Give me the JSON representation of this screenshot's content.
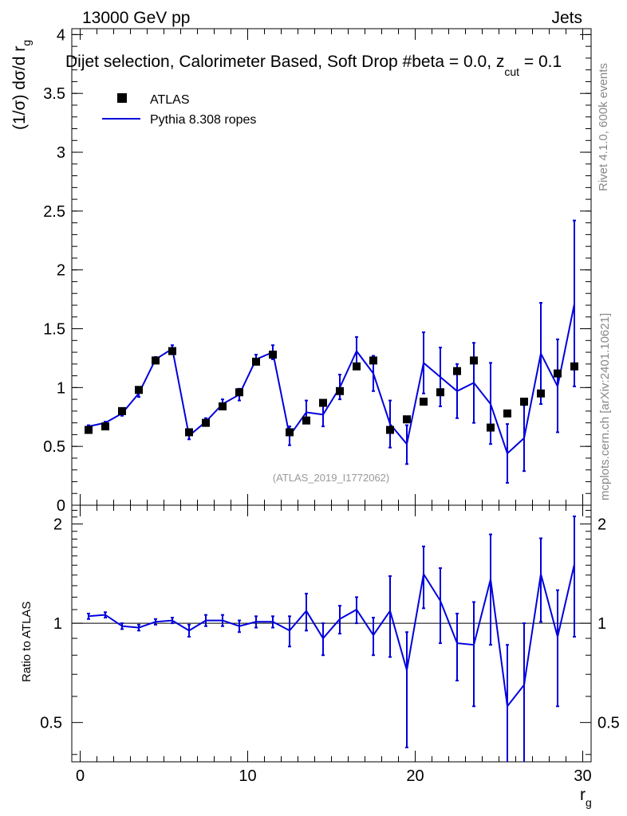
{
  "header": {
    "left": "13000 GeV pp",
    "right": "Jets"
  },
  "plot_title": "Dijet selection, Calorimeter Based, Soft Drop #beta = 0.0, z",
  "plot_title_sub": "cut",
  "plot_title_tail": " = 0.1",
  "side_labels": {
    "rivet": "Rivet 4.1.0,  600k events",
    "mcplots": "mcplots.cern.ch [arXiv:2401.10621]"
  },
  "analysis_id": "(ATLAS_2019_I1772062)",
  "chart_data": [
    {
      "type": "scatter+line",
      "panel": "main",
      "ylabel": "(1/σ) dσ/d r",
      "ylabel_sub": "g",
      "ylim": [
        0,
        4.05
      ],
      "yticks": [
        {
          "v": 0,
          "label": "0"
        },
        {
          "v": 0.5,
          "label": "0.5"
        },
        {
          "v": 1,
          "label": "1"
        },
        {
          "v": 1.5,
          "label": "1.5"
        },
        {
          "v": 2,
          "label": "2"
        },
        {
          "v": 2.5,
          "label": "2.5"
        },
        {
          "v": 3,
          "label": "3"
        },
        {
          "v": 3.5,
          "label": "3.5"
        },
        {
          "v": 4,
          "label": "4"
        }
      ],
      "xlim": [
        -0.5,
        30.5
      ],
      "legend": [
        {
          "label": "ATLAS",
          "kind": "marker"
        },
        {
          "label": "Pythia 8.308 ropes",
          "kind": "line",
          "color": "#0000dd"
        }
      ],
      "x": [
        0.5,
        1.5,
        2.5,
        3.5,
        4.5,
        5.5,
        6.5,
        7.5,
        8.5,
        9.5,
        10.5,
        11.5,
        12.5,
        13.5,
        14.5,
        15.5,
        16.5,
        17.5,
        18.5,
        19.5,
        20.5,
        21.5,
        22.5,
        23.5,
        24.5,
        25.5,
        26.5,
        27.5,
        28.5,
        29.5
      ],
      "series": [
        {
          "name": "ATLAS",
          "values": [
            0.64,
            0.67,
            0.8,
            0.98,
            1.23,
            1.31,
            0.62,
            0.7,
            0.84,
            0.96,
            1.22,
            1.28,
            0.62,
            0.72,
            0.87,
            0.97,
            1.18,
            1.23,
            0.64,
            0.73,
            0.88,
            0.96,
            1.14,
            1.23,
            0.66,
            0.78,
            0.88,
            0.95,
            1.12,
            1.18
          ],
          "color": "#000000"
        },
        {
          "name": "Pythia 8.308 ropes",
          "values": [
            0.67,
            0.7,
            0.78,
            0.95,
            1.24,
            1.33,
            0.59,
            0.71,
            0.86,
            0.94,
            1.24,
            1.3,
            0.59,
            0.79,
            0.77,
            1.0,
            1.31,
            1.12,
            0.69,
            0.52,
            1.21,
            1.09,
            0.97,
            1.04,
            0.86,
            0.44,
            0.57,
            1.29,
            1.01,
            1.71
          ],
          "err_low": [
            0.01,
            0.01,
            0.02,
            0.03,
            0.02,
            0.03,
            0.03,
            0.03,
            0.04,
            0.05,
            0.04,
            0.06,
            0.08,
            0.09,
            0.1,
            0.1,
            0.12,
            0.15,
            0.2,
            0.17,
            0.26,
            0.25,
            0.23,
            0.34,
            0.34,
            0.25,
            0.28,
            0.43,
            0.39,
            0.7
          ],
          "err_high": [
            0.01,
            0.01,
            0.02,
            0.03,
            0.02,
            0.03,
            0.03,
            0.03,
            0.04,
            0.05,
            0.04,
            0.06,
            0.08,
            0.1,
            0.1,
            0.11,
            0.12,
            0.15,
            0.2,
            0.16,
            0.26,
            0.25,
            0.23,
            0.34,
            0.35,
            0.25,
            0.28,
            0.43,
            0.4,
            0.71
          ],
          "color": "#0000dd"
        }
      ]
    },
    {
      "type": "line",
      "panel": "ratio",
      "ylabel": "Ratio to ATLAS",
      "ylim": [
        0.38,
        2.28
      ],
      "yticks": [
        {
          "v": 0.5,
          "label": "0.5"
        },
        {
          "v": 1,
          "label": "1"
        },
        {
          "v": 2,
          "label": "2"
        }
      ],
      "xlabel": "r",
      "xlabel_sub": "g",
      "xlim": [
        -0.5,
        30.5
      ],
      "xticks": [
        {
          "v": 0,
          "label": "0"
        },
        {
          "v": 10,
          "label": "10"
        },
        {
          "v": 20,
          "label": "20"
        },
        {
          "v": 30,
          "label": "30"
        }
      ],
      "reference": 1,
      "x": [
        0.5,
        1.5,
        2.5,
        3.5,
        4.5,
        5.5,
        6.5,
        7.5,
        8.5,
        9.5,
        10.5,
        11.5,
        12.5,
        13.5,
        14.5,
        15.5,
        16.5,
        17.5,
        18.5,
        19.5,
        20.5,
        21.5,
        22.5,
        23.5,
        24.5,
        25.5,
        26.5,
        27.5,
        28.5,
        29.5
      ],
      "series": [
        {
          "name": "Pythia 8.308 ropes / ATLAS",
          "values": [
            1.05,
            1.06,
            0.98,
            0.97,
            1.01,
            1.02,
            0.95,
            1.02,
            1.02,
            0.98,
            1.01,
            1.01,
            0.95,
            1.09,
            0.9,
            1.03,
            1.1,
            0.92,
            1.09,
            0.72,
            1.41,
            1.17,
            0.87,
            0.86,
            1.36,
            0.56,
            0.65,
            1.41,
            0.91,
            1.51
          ],
          "err_low": [
            0.02,
            0.02,
            0.02,
            0.02,
            0.02,
            0.02,
            0.04,
            0.04,
            0.04,
            0.04,
            0.04,
            0.04,
            0.1,
            0.14,
            0.1,
            0.1,
            0.1,
            0.12,
            0.3,
            0.3,
            0.3,
            0.3,
            0.2,
            0.3,
            0.5,
            0.3,
            0.35,
            0.4,
            0.35,
            0.6
          ],
          "err_high": [
            0.02,
            0.02,
            0.02,
            0.02,
            0.02,
            0.02,
            0.04,
            0.04,
            0.04,
            0.04,
            0.04,
            0.04,
            0.1,
            0.14,
            0.1,
            0.1,
            0.1,
            0.12,
            0.3,
            0.22,
            0.3,
            0.3,
            0.2,
            0.3,
            0.5,
            0.3,
            0.35,
            0.4,
            0.35,
            0.6
          ],
          "color": "#0000dd"
        }
      ]
    }
  ]
}
